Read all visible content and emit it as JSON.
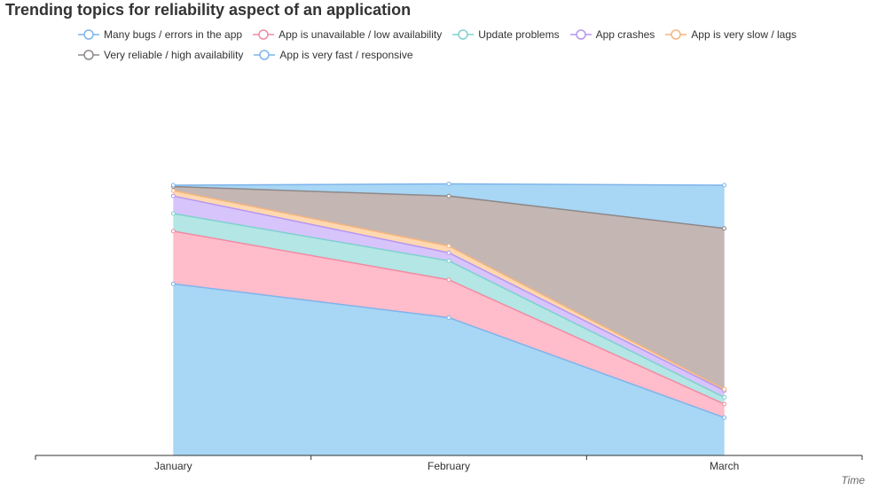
{
  "chart_data": {
    "type": "area",
    "stacked": true,
    "title": "Trending topics for reliability aspect of an application",
    "xlabel": "Time",
    "ylabel": "",
    "categories": [
      "January",
      "February",
      "March"
    ],
    "ylim": [
      0,
      100
    ],
    "grid": false,
    "legend_placement": "top-left",
    "series": [
      {
        "name": "Many bugs / errors in the app",
        "values": [
          63.5,
          51.0,
          14.0
        ],
        "line": "#7eb4ea",
        "fill": "#a8d6f5"
      },
      {
        "name": "App is unavailable / low availability",
        "values": [
          19.5,
          14.0,
          5.0
        ],
        "line": "#f08ba3",
        "fill": "#ffbccb"
      },
      {
        "name": "Update problems",
        "values": [
          6.5,
          7.0,
          2.5
        ],
        "line": "#7fd1cf",
        "fill": "#b3e6e4"
      },
      {
        "name": "App crashes",
        "values": [
          6.5,
          3.0,
          2.5
        ],
        "line": "#b597f0",
        "fill": "#d7c4fb"
      },
      {
        "name": "App is very slow / lags",
        "values": [
          2.0,
          2.5,
          0.5
        ],
        "line": "#f6b47f",
        "fill": "#ffd8b0"
      },
      {
        "name": "Very reliable / high availability",
        "values": [
          1.5,
          18.5,
          59.5
        ],
        "line": "#8e8888",
        "fill": "#c4b6b3"
      },
      {
        "name": "App is very fast / responsive",
        "values": [
          0.5,
          4.5,
          16.0
        ],
        "line": "#7eb4ea",
        "fill": "#a8d6f5"
      }
    ]
  }
}
